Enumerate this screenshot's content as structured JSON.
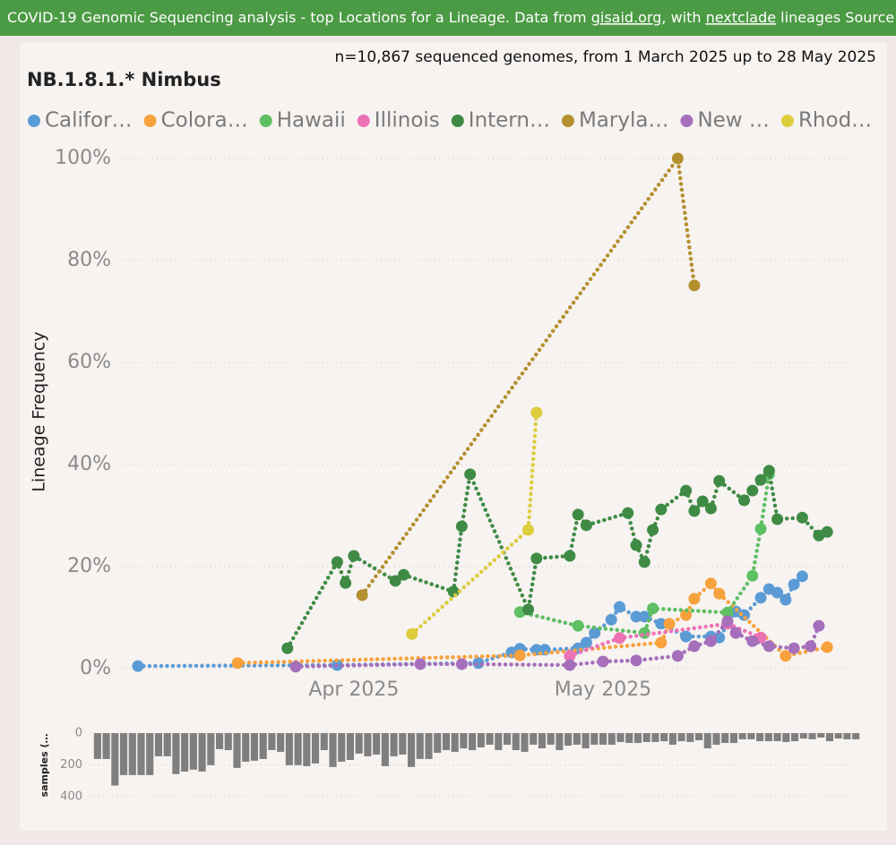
{
  "header": {
    "text": "COVID-19 Genomic Sequencing analysis - top Locations for a Lineage. Data from ",
    "link1": "gisaid.org",
    "middle": ", with ",
    "link2": "nextclade",
    "end": " lineages Source fi"
  },
  "chart_data": [
    {
      "type": "line",
      "title": "NB.1.8.1.* Nimbus",
      "subtitle": "n=10,867 sequenced genomes, from 1 March 2025 up to 28 May 2025",
      "ylabel": "Lineage Frequency",
      "legend": "top-left",
      "grid": true,
      "xlim": [
        "2025-03-01",
        "2025-05-31"
      ],
      "xticks": [
        {
          "value": "2025-04-01",
          "label": "Apr 2025"
        },
        {
          "value": "2025-05-01",
          "label": "May 2025"
        }
      ],
      "ylim": [
        0,
        100
      ],
      "yticks": [
        {
          "value": 0,
          "label": "0%"
        },
        {
          "value": 20,
          "label": "20%"
        },
        {
          "value": 40,
          "label": "40%"
        },
        {
          "value": 60,
          "label": "60%"
        },
        {
          "value": 80,
          "label": "80%"
        },
        {
          "value": 100,
          "label": "100%"
        }
      ],
      "series": [
        {
          "name": "Califor…",
          "color": "#5b9bd5",
          "x": [
            "2025-03-06",
            "2025-03-30",
            "2025-04-16",
            "2025-04-20",
            "2025-04-21",
            "2025-04-23",
            "2025-04-24",
            "2025-04-28",
            "2025-04-29",
            "2025-04-30",
            "2025-05-02",
            "2025-05-03",
            "2025-05-05",
            "2025-05-06",
            "2025-05-08",
            "2025-05-11",
            "2025-05-14",
            "2025-05-15",
            "2025-05-17",
            "2025-05-18",
            "2025-05-20",
            "2025-05-21",
            "2025-05-22",
            "2025-05-23",
            "2025-05-24",
            "2025-05-25"
          ],
          "values": [
            0.5,
            0.7,
            1.1,
            3.2,
            3.9,
            3.7,
            3.7,
            4.0,
            5.1,
            7.0,
            9.6,
            12.1,
            10.2,
            10.2,
            8.8,
            6.3,
            6.3,
            6.1,
            11.2,
            10.5,
            13.9,
            15.6,
            14.9,
            13.5,
            16.5,
            18.1
          ]
        },
        {
          "name": "Colora…",
          "color": "#f7a23c",
          "x": [
            "2025-03-18",
            "2025-04-21",
            "2025-05-08",
            "2025-05-09",
            "2025-05-11",
            "2025-05-12",
            "2025-05-14",
            "2025-05-15",
            "2025-05-23",
            "2025-05-28"
          ],
          "values": [
            1.1,
            2.6,
            5.1,
            8.8,
            10.5,
            13.7,
            16.7,
            14.7,
            2.5,
            4.2
          ]
        },
        {
          "name": "Hawaii",
          "color": "#5fbf63",
          "x": [
            "2025-04-21",
            "2025-04-28",
            "2025-05-06",
            "2025-05-07",
            "2025-05-16",
            "2025-05-19",
            "2025-05-20",
            "2025-05-21"
          ],
          "values": [
            11.1,
            8.4,
            7.0,
            11.8,
            11.0,
            18.2,
            27.4,
            38.1
          ]
        },
        {
          "name": "Illinois",
          "color": "#ec72b6",
          "x": [
            "2025-04-27",
            "2025-05-03",
            "2025-05-16",
            "2025-05-20"
          ],
          "values": [
            2.5,
            6.0,
            8.8,
            6.1
          ]
        },
        {
          "name": "Intern…",
          "color": "#3f8b45",
          "x": [
            "2025-03-24",
            "2025-03-30",
            "2025-03-31",
            "2025-04-01",
            "2025-04-06",
            "2025-04-07",
            "2025-04-13",
            "2025-04-14",
            "2025-04-15",
            "2025-04-22",
            "2025-04-23",
            "2025-04-27",
            "2025-04-28",
            "2025-04-29",
            "2025-05-04",
            "2025-05-05",
            "2025-05-06",
            "2025-05-07",
            "2025-05-08",
            "2025-05-11",
            "2025-05-12",
            "2025-05-13",
            "2025-05-14",
            "2025-05-15",
            "2025-05-18",
            "2025-05-19",
            "2025-05-20",
            "2025-05-21",
            "2025-05-22",
            "2025-05-25",
            "2025-05-27",
            "2025-05-28"
          ],
          "values": [
            4.0,
            20.9,
            16.8,
            22.1,
            17.2,
            18.4,
            15.1,
            27.9,
            38.1,
            11.6,
            21.6,
            22.1,
            30.2,
            28.1,
            30.5,
            24.2,
            20.9,
            27.2,
            31.2,
            34.9,
            30.9,
            32.8,
            31.4,
            36.8,
            33.0,
            34.9,
            37.0,
            38.8,
            29.3,
            29.6,
            26.1,
            26.8
          ]
        },
        {
          "name": "Maryla…",
          "color": "#b48f2e",
          "x": [
            "2025-04-02",
            "2025-05-10",
            "2025-05-12"
          ],
          "values": [
            14.4,
            100,
            75.1
          ]
        },
        {
          "name": "New …",
          "color": "#a56fbb",
          "x": [
            "2025-03-25",
            "2025-04-09",
            "2025-04-14",
            "2025-04-27",
            "2025-05-01",
            "2025-05-05",
            "2025-05-10",
            "2025-05-12",
            "2025-05-14",
            "2025-05-16",
            "2025-05-17",
            "2025-05-19",
            "2025-05-21",
            "2025-05-24",
            "2025-05-26",
            "2025-05-27"
          ],
          "values": [
            0.4,
            0.9,
            0.9,
            0.7,
            1.4,
            1.6,
            2.5,
            4.4,
            5.4,
            9.3,
            7.0,
            5.4,
            4.4,
            4.0,
            4.4,
            8.4
          ]
        },
        {
          "name": "Rhod…",
          "color": "#dccd3c",
          "x": [
            "2025-04-08",
            "2025-04-22",
            "2025-04-23"
          ],
          "values": [
            6.8,
            27.2,
            50.2
          ]
        }
      ]
    },
    {
      "type": "bar",
      "ylabel": "samples (…",
      "color": "#7f7f7f",
      "grid": true,
      "y_reversed": true,
      "xlim": [
        "2025-03-01",
        "2025-05-28"
      ],
      "ylim": [
        0,
        400
      ],
      "yticks": [
        0,
        200,
        400
      ],
      "x": [
        "2025-03-01",
        "2025-03-02",
        "2025-03-03",
        "2025-03-04",
        "2025-03-05",
        "2025-03-06",
        "2025-03-07",
        "2025-03-08",
        "2025-03-09",
        "2025-03-10",
        "2025-03-11",
        "2025-03-12",
        "2025-03-13",
        "2025-03-14",
        "2025-03-15",
        "2025-03-16",
        "2025-03-17",
        "2025-03-18",
        "2025-03-19",
        "2025-03-20",
        "2025-03-21",
        "2025-03-22",
        "2025-03-23",
        "2025-03-24",
        "2025-03-25",
        "2025-03-26",
        "2025-03-27",
        "2025-03-28",
        "2025-03-29",
        "2025-03-30",
        "2025-03-31",
        "2025-04-01",
        "2025-04-02",
        "2025-04-03",
        "2025-04-04",
        "2025-04-05",
        "2025-04-06",
        "2025-04-07",
        "2025-04-08",
        "2025-04-09",
        "2025-04-10",
        "2025-04-11",
        "2025-04-12",
        "2025-04-13",
        "2025-04-14",
        "2025-04-15",
        "2025-04-16",
        "2025-04-17",
        "2025-04-18",
        "2025-04-19",
        "2025-04-20",
        "2025-04-21",
        "2025-04-22",
        "2025-04-23",
        "2025-04-24",
        "2025-04-25",
        "2025-04-26",
        "2025-04-27",
        "2025-04-28",
        "2025-04-29",
        "2025-04-30",
        "2025-05-01",
        "2025-05-02",
        "2025-05-03",
        "2025-05-04",
        "2025-05-05",
        "2025-05-06",
        "2025-05-07",
        "2025-05-08",
        "2025-05-09",
        "2025-05-10",
        "2025-05-11",
        "2025-05-12",
        "2025-05-13",
        "2025-05-14",
        "2025-05-15",
        "2025-05-16",
        "2025-05-17",
        "2025-05-18",
        "2025-05-19",
        "2025-05-20",
        "2025-05-21",
        "2025-05-22",
        "2025-05-23",
        "2025-05-24",
        "2025-05-25",
        "2025-05-26",
        "2025-05-27"
      ],
      "values": [
        163,
        163,
        330,
        264,
        264,
        264,
        264,
        146,
        146,
        258,
        242,
        230,
        242,
        202,
        101,
        107,
        219,
        180,
        174,
        163,
        107,
        118,
        202,
        202,
        208,
        191,
        107,
        213,
        180,
        169,
        129,
        146,
        135,
        208,
        146,
        135,
        213,
        163,
        163,
        124,
        107,
        118,
        96,
        107,
        90,
        73,
        107,
        73,
        107,
        118,
        73,
        96,
        73,
        107,
        79,
        73,
        96,
        73,
        73,
        73,
        56,
        62,
        62,
        56,
        56,
        51,
        73,
        51,
        56,
        45,
        96,
        73,
        62,
        62,
        39,
        39,
        51,
        51,
        51,
        56,
        51,
        34,
        39,
        28,
        51,
        34,
        39,
        39
      ]
    }
  ]
}
